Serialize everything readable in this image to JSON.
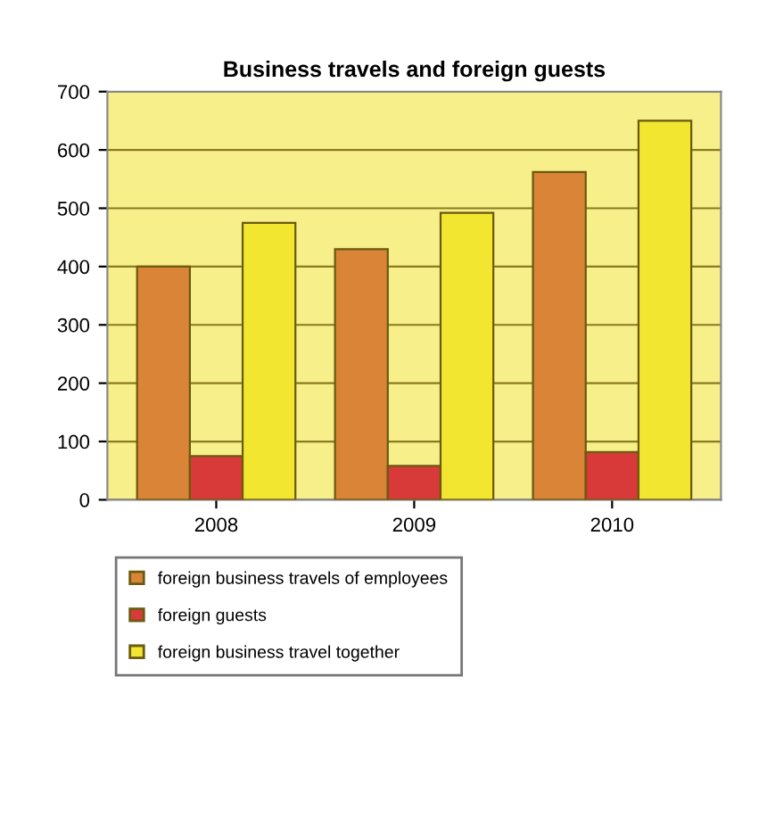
{
  "chart_data": {
    "type": "bar",
    "title": "Business travels and foreign guests",
    "categories": [
      "2008",
      "2009",
      "2010"
    ],
    "series": [
      {
        "name": "foreign business travels of employees",
        "color": "#d98436",
        "values": [
          400,
          430,
          562
        ]
      },
      {
        "name": "foreign guests",
        "color": "#d83a3a",
        "values": [
          75,
          58,
          82
        ]
      },
      {
        "name": "foreign business travel together",
        "color": "#f2e630",
        "values": [
          475,
          492,
          650
        ]
      }
    ],
    "ylim": [
      0,
      700
    ],
    "yticks": [
      0,
      100,
      200,
      300,
      400,
      500,
      600,
      700
    ],
    "grid": "y",
    "legend": "bottom"
  }
}
